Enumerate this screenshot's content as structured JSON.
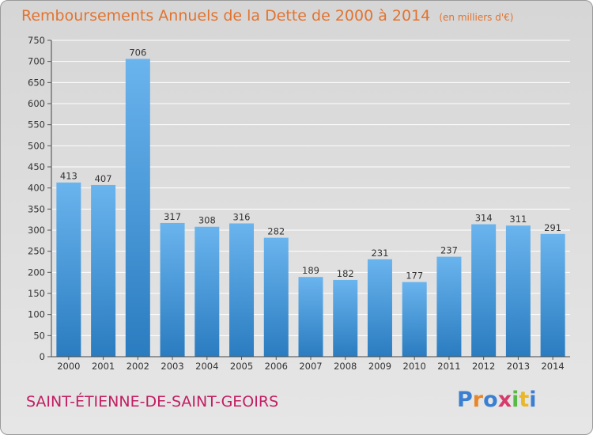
{
  "title": "Remboursements Annuels de la Dette de 2000 à 2014",
  "unit_note": "(en milliers d'€)",
  "commune": "SAINT-ÉTIENNE-DE-SAINT-GEOIRS",
  "logo": {
    "text": "Proxiti",
    "colors": [
      "#3a7fd1",
      "#e8862a",
      "#3a7fd1",
      "#d63b6c",
      "#58b947",
      "#e8b72a",
      "#3a7fd1"
    ]
  },
  "colors": {
    "bar_top": "#6ab4ee",
    "bar_bottom": "#2a7cc0",
    "title": "#e2732f",
    "commune": "#c21e63",
    "grid": "#ffffff"
  },
  "chart_data": {
    "type": "bar",
    "title": "Remboursements Annuels de la Dette de 2000 à 2014",
    "subtitle": "(en milliers d'€)",
    "categories": [
      "2000",
      "2001",
      "2002",
      "2003",
      "2004",
      "2005",
      "2006",
      "2007",
      "2008",
      "2009",
      "2010",
      "2011",
      "2012",
      "2013",
      "2014"
    ],
    "values": [
      413,
      407,
      706,
      317,
      308,
      316,
      282,
      189,
      182,
      231,
      177,
      237,
      314,
      311,
      291
    ],
    "ylim": [
      0,
      750
    ],
    "yticks": [
      0,
      50,
      100,
      150,
      200,
      250,
      300,
      350,
      400,
      450,
      500,
      550,
      600,
      650,
      700,
      750
    ],
    "grid": true,
    "xlabel": "",
    "ylabel": ""
  }
}
